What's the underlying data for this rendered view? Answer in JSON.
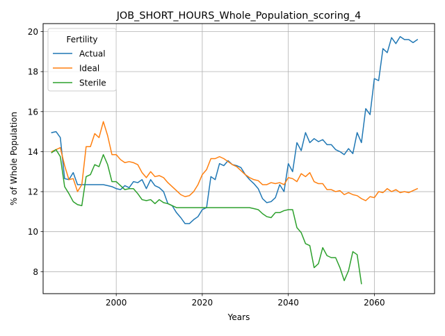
{
  "chart_data": {
    "type": "line",
    "title": "JOB_SHORT_HOURS_Whole_Population_scoring_4",
    "xlabel": "Years",
    "ylabel": "% of Whole Population",
    "xlim": [
      1983,
      2074
    ],
    "ylim": [
      6.9,
      20.4
    ],
    "x_ticks": [
      2000,
      2020,
      2040,
      2060
    ],
    "y_ticks": [
      8,
      10,
      12,
      14,
      16,
      18,
      20
    ],
    "grid": true,
    "legend": {
      "title": "Fertility",
      "position": "top-left"
    },
    "series": [
      {
        "name": "Actual",
        "color": "#1f77b4",
        "x": [
          1985,
          1986,
          1987,
          1988,
          1989,
          1990,
          1991,
          1992,
          1993,
          1994,
          1995,
          1996,
          1997,
          1998,
          1999,
          2000,
          2001,
          2002,
          2003,
          2004,
          2005,
          2006,
          2007,
          2008,
          2009,
          2010,
          2011,
          2012,
          2013,
          2014,
          2015,
          2016,
          2017,
          2018,
          2019,
          2020,
          2021,
          2022,
          2023,
          2024,
          2025,
          2026,
          2027,
          2028,
          2029,
          2030,
          2031,
          2032,
          2033,
          2034,
          2035,
          2036,
          2037,
          2038,
          2039,
          2040,
          2041,
          2042,
          2043,
          2044,
          2045,
          2046,
          2047,
          2048,
          2049,
          2050,
          2051,
          2052,
          2053,
          2054,
          2055,
          2056,
          2057,
          2058,
          2059,
          2060,
          2061,
          2062,
          2063,
          2064,
          2065,
          2066,
          2067,
          2068,
          2069,
          2070
        ],
        "values": [
          14.95,
          15.0,
          14.7,
          12.65,
          12.6,
          12.95,
          12.35,
          12.35,
          12.35,
          12.35,
          12.35,
          12.35,
          12.35,
          12.3,
          12.25,
          12.15,
          12.1,
          12.3,
          12.2,
          12.5,
          12.45,
          12.6,
          12.15,
          12.6,
          12.3,
          12.2,
          12.0,
          11.4,
          11.3,
          10.95,
          10.7,
          10.4,
          10.4,
          10.6,
          10.75,
          11.1,
          11.2,
          12.75,
          12.6,
          13.4,
          13.3,
          13.55,
          13.35,
          13.3,
          13.2,
          12.85,
          12.6,
          12.4,
          12.15,
          11.65,
          11.45,
          11.5,
          11.7,
          12.35,
          12.0,
          13.4,
          13.0,
          14.45,
          14.05,
          14.95,
          14.45,
          14.65,
          14.5,
          14.6,
          14.35,
          14.35,
          14.1,
          14.0,
          13.85,
          14.15,
          13.9,
          14.95,
          14.45,
          16.15,
          15.85,
          17.65,
          17.55,
          19.15,
          18.95,
          19.7,
          19.4,
          19.75,
          19.6,
          19.6,
          19.45,
          19.6
        ]
      },
      {
        "name": "Ideal",
        "color": "#ff7f0e",
        "x": [
          1985,
          1986,
          1987,
          1988,
          1989,
          1990,
          1991,
          1992,
          1993,
          1994,
          1995,
          1996,
          1997,
          1998,
          1999,
          2000,
          2001,
          2002,
          2003,
          2004,
          2005,
          2006,
          2007,
          2008,
          2009,
          2010,
          2011,
          2012,
          2013,
          2014,
          2015,
          2016,
          2017,
          2018,
          2019,
          2020,
          2021,
          2022,
          2023,
          2024,
          2025,
          2026,
          2027,
          2028,
          2029,
          2030,
          2031,
          2032,
          2033,
          2034,
          2035,
          2036,
          2037,
          2038,
          2039,
          2040,
          2041,
          2042,
          2043,
          2044,
          2045,
          2046,
          2047,
          2048,
          2049,
          2050,
          2051,
          2052,
          2053,
          2054,
          2055,
          2056,
          2057,
          2058,
          2059,
          2060,
          2061,
          2062,
          2063,
          2064,
          2065,
          2066,
          2067,
          2068,
          2069,
          2070
        ],
        "values": [
          14.0,
          14.1,
          14.2,
          13.3,
          12.6,
          12.65,
          12.0,
          12.35,
          14.25,
          14.25,
          14.9,
          14.7,
          15.5,
          14.8,
          13.85,
          13.85,
          13.6,
          13.45,
          13.5,
          13.45,
          13.35,
          12.95,
          12.7,
          13.0,
          12.75,
          12.8,
          12.7,
          12.45,
          12.25,
          12.05,
          11.85,
          11.75,
          11.8,
          12.0,
          12.35,
          12.85,
          13.1,
          13.65,
          13.65,
          13.75,
          13.65,
          13.5,
          13.35,
          13.25,
          13.05,
          12.85,
          12.7,
          12.6,
          12.55,
          12.35,
          12.35,
          12.45,
          12.4,
          12.45,
          12.35,
          12.7,
          12.65,
          12.5,
          12.9,
          12.75,
          12.95,
          12.5,
          12.4,
          12.4,
          12.1,
          12.1,
          12.0,
          12.05,
          11.85,
          11.95,
          11.85,
          11.8,
          11.65,
          11.55,
          11.75,
          11.7,
          12.0,
          11.95,
          12.15,
          12.0,
          12.1,
          11.95,
          12.0,
          11.95,
          12.05,
          12.15
        ]
      },
      {
        "name": "Sterile",
        "color": "#2ca02c",
        "x": [
          1985,
          1986,
          1987,
          1988,
          1989,
          1990,
          1991,
          1992,
          1993,
          1994,
          1995,
          1996,
          1997,
          1998,
          1999,
          2000,
          2001,
          2002,
          2003,
          2004,
          2005,
          2006,
          2007,
          2008,
          2009,
          2010,
          2011,
          2012,
          2013,
          2014,
          2015,
          2016,
          2017,
          2018,
          2019,
          2020,
          2021,
          2022,
          2023,
          2024,
          2025,
          2026,
          2027,
          2028,
          2029,
          2030,
          2031,
          2032,
          2033,
          2034,
          2035,
          2036,
          2037,
          2038,
          2039,
          2040,
          2041,
          2042,
          2043,
          2044,
          2045,
          2046,
          2047,
          2048,
          2049,
          2050,
          2051,
          2052,
          2053,
          2054,
          2055,
          2056,
          2057
        ],
        "values": [
          13.95,
          14.1,
          13.75,
          12.25,
          11.9,
          11.5,
          11.35,
          11.3,
          12.75,
          12.85,
          13.35,
          13.25,
          13.85,
          13.35,
          12.5,
          12.5,
          12.3,
          12.1,
          12.15,
          12.15,
          11.9,
          11.6,
          11.55,
          11.6,
          11.4,
          11.6,
          11.45,
          11.4,
          11.3,
          11.2,
          11.2,
          11.2,
          11.2,
          11.2,
          11.2,
          11.2,
          11.2,
          11.2,
          11.2,
          11.2,
          11.2,
          11.2,
          11.2,
          11.2,
          11.2,
          11.2,
          11.2,
          11.15,
          11.1,
          10.9,
          10.75,
          10.7,
          10.95,
          10.95,
          11.05,
          11.1,
          11.1,
          10.2,
          9.95,
          9.4,
          9.3,
          8.2,
          8.4,
          9.2,
          8.8,
          8.7,
          8.7,
          8.2,
          7.55,
          8.05,
          9.0,
          8.85,
          7.4
        ]
      }
    ]
  }
}
